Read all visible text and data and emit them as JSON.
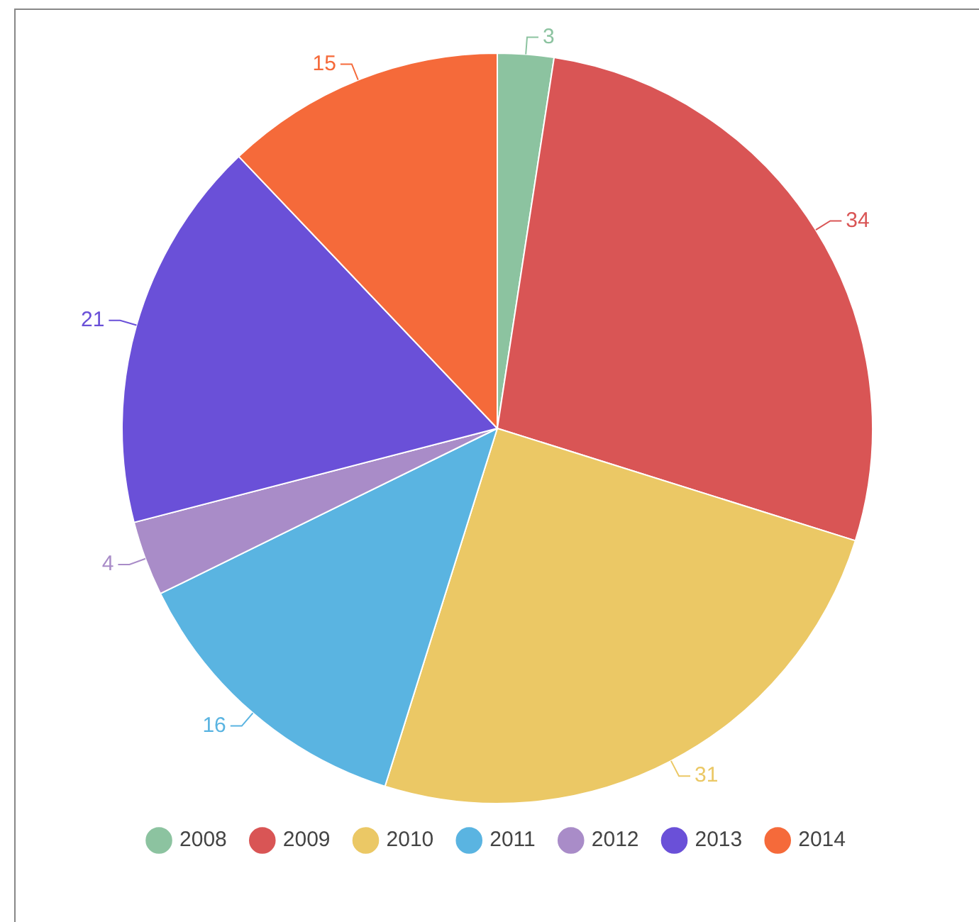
{
  "chart_data": {
    "type": "pie",
    "categories": [
      "2008",
      "2009",
      "2010",
      "2011",
      "2012",
      "2013",
      "2014"
    ],
    "values": [
      3,
      34,
      31,
      16,
      4,
      21,
      15
    ],
    "colors": [
      "#8cc3a0",
      "#d95555",
      "#ebc865",
      "#5ab4e1",
      "#a98cc8",
      "#6a50d8",
      "#f56a3a"
    ],
    "data_labels": true,
    "legend": "bottom"
  }
}
